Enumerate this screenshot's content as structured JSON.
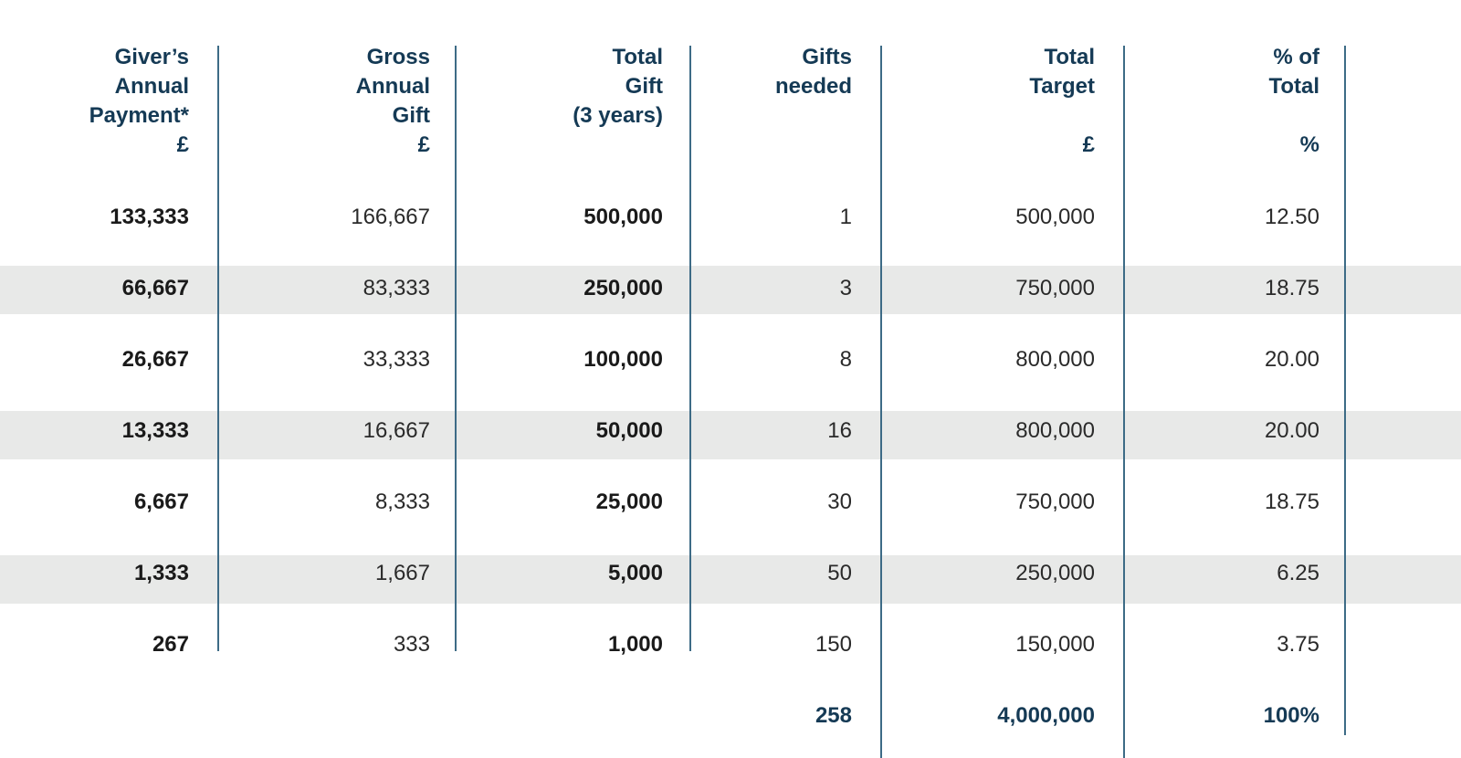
{
  "headers": [
    [
      "Giver’s",
      "Annual",
      "Payment*",
      "£"
    ],
    [
      "Gross",
      "Annual",
      "Gift",
      "£"
    ],
    [
      "Total",
      "Gift",
      "(3 years)",
      ""
    ],
    [
      "Gifts",
      "needed",
      "",
      ""
    ],
    [
      "Total",
      "Target",
      "",
      "£"
    ],
    [
      "% of",
      "Total",
      "",
      "%"
    ]
  ],
  "rows": [
    [
      "133,333",
      "166,667",
      "500,000",
      "1",
      "500,000",
      "12.50"
    ],
    [
      "66,667",
      "83,333",
      "250,000",
      "3",
      "750,000",
      "18.75"
    ],
    [
      "26,667",
      "33,333",
      "100,000",
      "8",
      "800,000",
      "20.00"
    ],
    [
      "13,333",
      "16,667",
      "50,000",
      "16",
      "800,000",
      "20.00"
    ],
    [
      "6,667",
      "8,333",
      "25,000",
      "30",
      "750,000",
      "18.75"
    ],
    [
      "1,333",
      "1,667",
      "5,000",
      "50",
      "250,000",
      "6.25"
    ],
    [
      "267",
      "333",
      "1,000",
      "150",
      "150,000",
      "3.75"
    ]
  ],
  "totals": {
    "gifts_needed": "258",
    "total_target": "4,000,000",
    "percent_total": "100%"
  },
  "colors": {
    "header_text": "#153a55",
    "divider": "#3d6b86",
    "stripe": "#e8e9e8"
  }
}
